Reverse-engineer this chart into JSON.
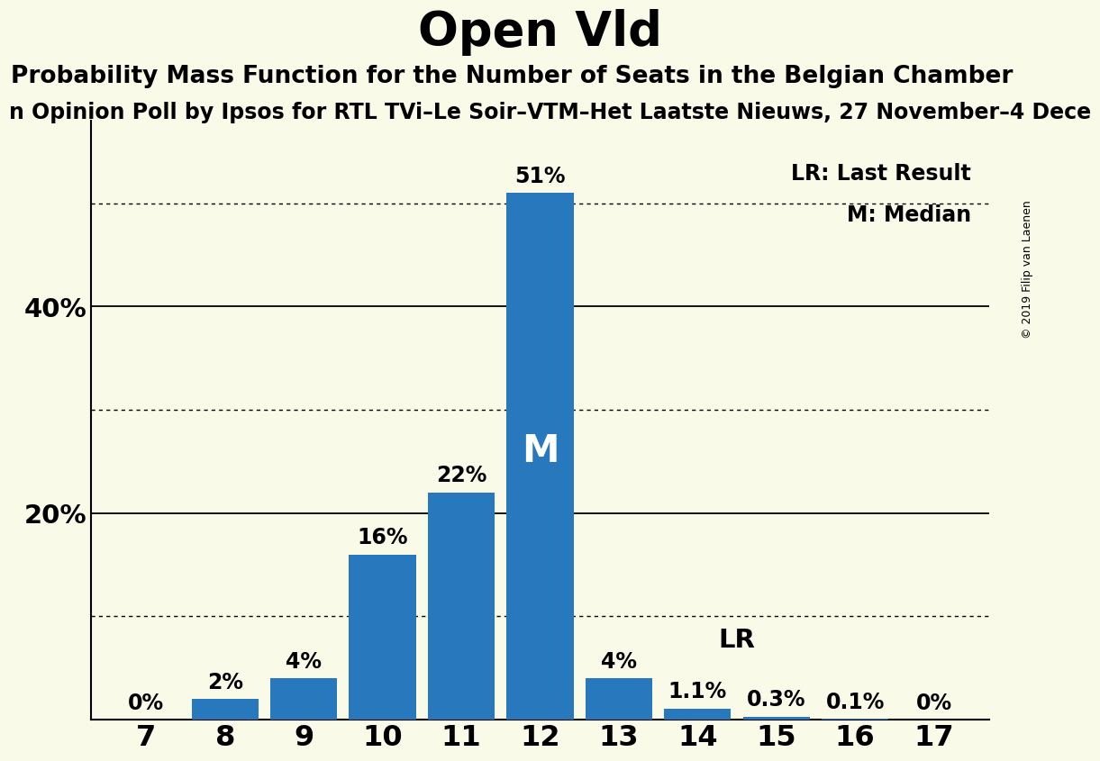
{
  "title": "Open Vld",
  "subtitle": "Probability Mass Function for the Number of Seats in the Belgian Chamber",
  "source_line": "n Opinion Poll by Ipsos for RTL TVi–Le Soir–VTM–Het Laatste Nieuws, 27 November–4 Dece",
  "copyright": "© 2019 Filip van Laenen",
  "seats": [
    7,
    8,
    9,
    10,
    11,
    12,
    13,
    14,
    15,
    16,
    17
  ],
  "probabilities": [
    0.0,
    2.0,
    4.0,
    16.0,
    22.0,
    51.0,
    4.0,
    1.1,
    0.3,
    0.1,
    0.0
  ],
  "bar_labels": [
    "0%",
    "2%",
    "4%",
    "16%",
    "22%",
    "51%",
    "4%",
    "1.1%",
    "0.3%",
    "0.1%",
    "0%"
  ],
  "bar_color": "#2878BE",
  "background_color": "#FAFAE8",
  "median_seat": 12,
  "lr_seat": 14,
  "solid_yticks": [
    20,
    40
  ],
  "dotted_yticks": [
    10,
    30,
    50
  ],
  "ylim": [
    0,
    58
  ],
  "title_fontsize": 38,
  "subtitle_fontsize": 19,
  "source_fontsize": 17,
  "bar_label_fontsize": 17,
  "ytick_fontsize": 21,
  "xtick_fontsize": 23,
  "legend_fontsize": 17
}
